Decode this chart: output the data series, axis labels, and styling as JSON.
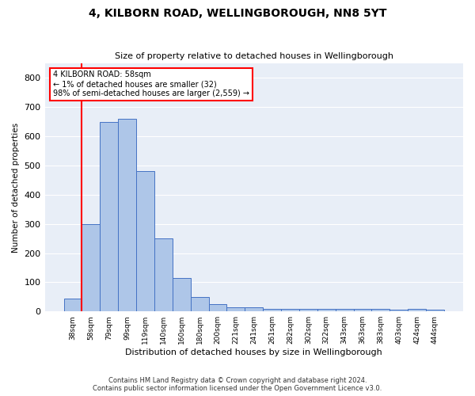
{
  "title": "4, KILBORN ROAD, WELLINGBOROUGH, NN8 5YT",
  "subtitle": "Size of property relative to detached houses in Wellingborough",
  "xlabel": "Distribution of detached houses by size in Wellingborough",
  "ylabel": "Number of detached properties",
  "footer_line1": "Contains HM Land Registry data © Crown copyright and database right 2024.",
  "footer_line2": "Contains public sector information licensed under the Open Government Licence v3.0.",
  "annotation_line1": "4 KILBORN ROAD: 58sqm",
  "annotation_line2": "← 1% of detached houses are smaller (32)",
  "annotation_line3": "98% of semi-detached houses are larger (2,559) →",
  "bar_labels": [
    "38sqm",
    "58sqm",
    "79sqm",
    "99sqm",
    "119sqm",
    "140sqm",
    "160sqm",
    "180sqm",
    "200sqm",
    "221sqm",
    "241sqm",
    "261sqm",
    "282sqm",
    "302sqm",
    "322sqm",
    "343sqm",
    "363sqm",
    "383sqm",
    "403sqm",
    "424sqm",
    "444sqm"
  ],
  "bar_values": [
    45,
    300,
    650,
    660,
    480,
    250,
    115,
    50,
    25,
    15,
    15,
    8,
    8,
    8,
    8,
    8,
    8,
    8,
    5,
    8,
    5
  ],
  "bar_color": "#aec6e8",
  "bar_edge_color": "#4472c4",
  "highlight_index": 1,
  "highlight_color": "#ff0000",
  "annotation_box_color": "#ffffff",
  "annotation_box_edge": "#ff0000",
  "background_color": "#ffffff",
  "plot_bg_color": "#e8eef7",
  "grid_color": "#ffffff",
  "ylim": [
    0,
    850
  ],
  "yticks": [
    0,
    100,
    200,
    300,
    400,
    500,
    600,
    700,
    800
  ]
}
